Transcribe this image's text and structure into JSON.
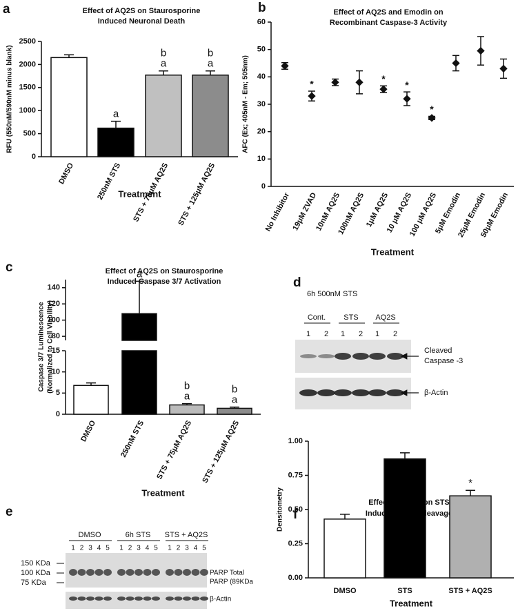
{
  "chart_data": [
    {
      "type": "bar",
      "panel_label": "a",
      "title": [
        "Effect of AQ2S on Staurosporine",
        "Induced Neuronal Death"
      ],
      "ylabel": [
        "RFU (550nM/590nM minus blank)"
      ],
      "xlabel": "Treatment",
      "categories": [
        "DMSO",
        "250nM STS",
        "STS + 75μM AQ2S",
        "STS + 125μM AQ2S"
      ],
      "values": [
        2150,
        620,
        1770,
        1770
      ],
      "errors": [
        60,
        150,
        90,
        90
      ],
      "colors": [
        "#ffffff",
        "#000000",
        "#c0c0c0",
        "#8c8c8c"
      ],
      "annotations": [
        null,
        [
          "a"
        ],
        [
          "b",
          "a"
        ],
        [
          "b",
          "a"
        ]
      ],
      "ylim": [
        0,
        2500
      ],
      "yticks": [
        0,
        500,
        1000,
        1500,
        2000,
        2500
      ]
    },
    {
      "type": "scatter",
      "panel_label": "b",
      "title": [
        "Effect of AQ2S and Emodin on",
        "Recombinant Caspase-3 Activity"
      ],
      "ylabel": [
        "AFC (Ex; 405nM - Em; 505nm)"
      ],
      "xlabel": "Treatment",
      "categories": [
        "No Inhibitor",
        "19μM ZVAD",
        "10nM AQ2S",
        "100nM AQ2S",
        "1μM AQ2S",
        "10 μM AQ2S",
        "100 μM AQ2S",
        "5μM Emodin",
        "25μM Emodin",
        "50μM Emodin"
      ],
      "values": [
        44,
        33,
        38,
        38,
        35.5,
        32,
        25,
        45,
        49.5,
        43
      ],
      "errors": [
        1.2,
        1.8,
        1.2,
        4.2,
        1.2,
        2.5,
        0.6,
        2.8,
        5.2,
        3.5
      ],
      "color": "#111111",
      "annotations": [
        null,
        "*",
        null,
        null,
        "*",
        "*",
        "*",
        null,
        null,
        null
      ],
      "ylim": [
        0,
        60
      ],
      "yticks": [
        0,
        10,
        20,
        30,
        40,
        50,
        60
      ]
    },
    {
      "type": "broken-bar",
      "panel_label": "c",
      "title": [
        "Effect of AQ2S on Staurosporine",
        "Induced Caspase 3/7 Activation"
      ],
      "ylabel": [
        "Caspase 3/7 Luminescence",
        "(Normalized to Cell Viability)"
      ],
      "xlabel": "Treatment",
      "categories": [
        "DMSO",
        "250nM STS",
        "STS + 75μM AQ2S",
        "STS + 125μM AQ2S"
      ],
      "values": [
        6.8,
        108,
        2.2,
        1.4
      ],
      "errors": [
        0.6,
        40,
        0.3,
        0.3
      ],
      "colors": [
        "#ffffff",
        "#000000",
        "#bbbbbb",
        "#8c8c8c"
      ],
      "annotations": [
        null,
        [
          "a"
        ],
        [
          "b",
          "a"
        ],
        [
          "b",
          "a"
        ]
      ],
      "ylim_lower": [
        0,
        15
      ],
      "yticks_lower": [
        0,
        5,
        10,
        15
      ],
      "ylim_upper": [
        75,
        150
      ],
      "yticks_upper": [
        80,
        100,
        120,
        140
      ]
    },
    {
      "type": "bar",
      "panel_label": "f",
      "title": [
        "Effect of AQ2S on STS",
        "Induced PARP Cleavage"
      ],
      "ylabel": [
        "Densitometry"
      ],
      "xlabel": "Treatment",
      "categories": [
        "DMSO",
        "STS",
        "STS + AQ2S"
      ],
      "values": [
        0.43,
        0.87,
        0.6
      ],
      "errors": [
        0.035,
        0.045,
        0.04
      ],
      "colors": [
        "#ffffff",
        "#000000",
        "#b0b0b0"
      ],
      "annotations": [
        null,
        null,
        [
          "*"
        ]
      ],
      "ylim": [
        0,
        1
      ],
      "yticks": [
        {
          "value": 0,
          "label": "0.00"
        },
        {
          "value": 0.25,
          "label": "0.25"
        },
        {
          "value": 0.5,
          "label": "0.50"
        },
        {
          "value": 0.75,
          "label": "0.75"
        },
        {
          "value": 1,
          "label": "1.00"
        }
      ]
    }
  ],
  "blot_d": {
    "panel_label": "d",
    "condition": "6h 500nM STS",
    "groups": [
      {
        "name": "Cont.",
        "lanes": [
          "1",
          "2"
        ]
      },
      {
        "name": "STS",
        "lanes": [
          "1",
          "2"
        ]
      },
      {
        "name": "AQ2S",
        "lanes": [
          "1",
          "2"
        ]
      }
    ],
    "band": [
      "Cleaved",
      "Caspase -3"
    ],
    "loading": "β-Actin"
  },
  "blot_e": {
    "panel_label": "e",
    "groups": [
      {
        "name": "DMSO",
        "lanes": [
          "1",
          "2",
          "3",
          "4",
          "5"
        ]
      },
      {
        "name": "6h STS",
        "lanes": [
          "1",
          "2",
          "3",
          "4",
          "5"
        ]
      },
      {
        "name": "STS + AQ2S",
        "lanes": [
          "1",
          "2",
          "3",
          "4",
          "5"
        ]
      }
    ],
    "markers": [
      "150 KDa",
      "100 KDa",
      "75 KDa"
    ],
    "bands": [
      "PARP Total",
      "PARP (89KDa"
    ],
    "loading": "β-Actin"
  }
}
